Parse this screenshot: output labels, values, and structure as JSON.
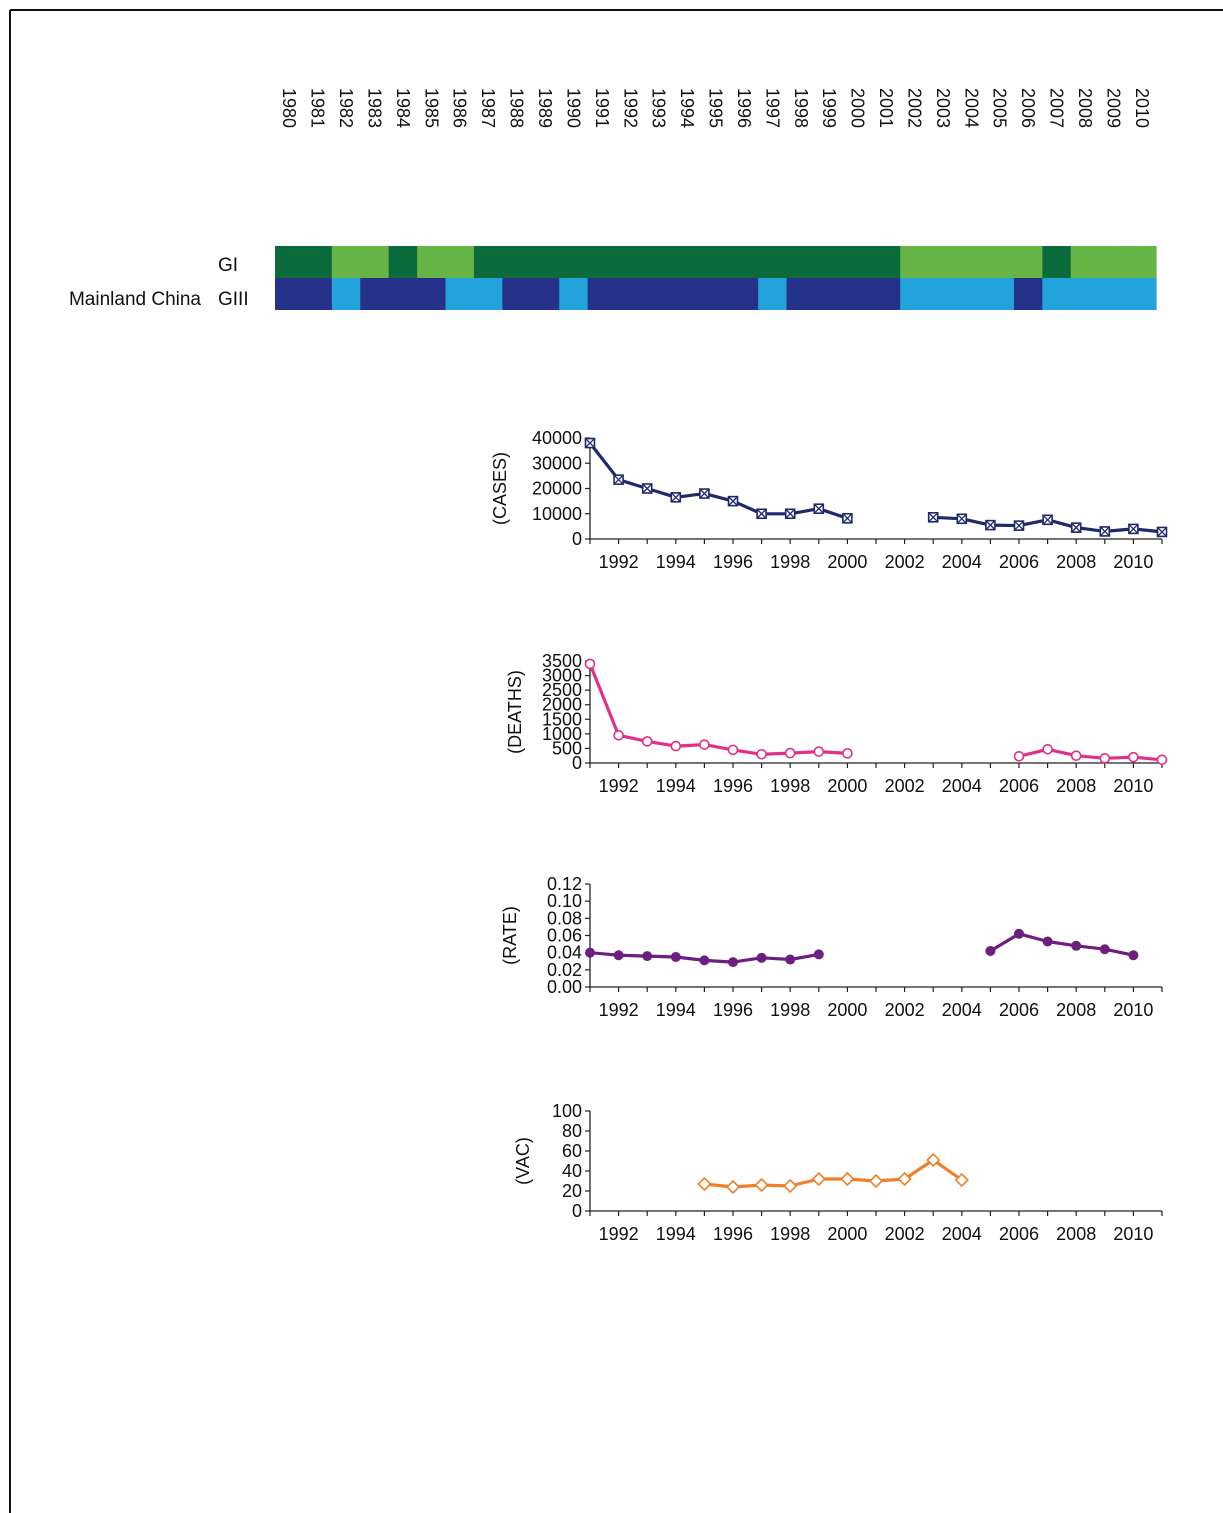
{
  "colors": {
    "gi_dark": "#0c6b3c",
    "gi_light": "#67b447",
    "giii_dark": "#26328a",
    "giii_light": "#22a3dc",
    "cases": "#1f2a6b",
    "deaths": "#e0308a",
    "rate": "#6c1f7f",
    "vac": "#f07f2c"
  },
  "chart_data": [
    {
      "type": "heatmap",
      "region_label": "Mainland China",
      "years": [
        "1980",
        "1981",
        "1982",
        "1983",
        "1984",
        "1985",
        "1986",
        "1987",
        "1988",
        "1989",
        "1990",
        "1991",
        "1992",
        "1993",
        "1994",
        "1995",
        "1996",
        "1997",
        "1998",
        "1999",
        "2000",
        "2001",
        "2002",
        "2003",
        "2004",
        "2005",
        "2006",
        "2007",
        "2008",
        "2009",
        "2010"
      ],
      "rows": [
        {
          "name": "GI",
          "levels": [
            "dark",
            "dark",
            "light",
            "light",
            "dark",
            "light",
            "light",
            "dark",
            "dark",
            "dark",
            "dark",
            "dark",
            "dark",
            "dark",
            "dark",
            "dark",
            "dark",
            "dark",
            "dark",
            "dark",
            "dark",
            "dark",
            "light",
            "light",
            "light",
            "light",
            "light",
            "dark",
            "light",
            "light",
            "light"
          ]
        },
        {
          "name": "GIII",
          "levels": [
            "dark",
            "dark",
            "light",
            "dark",
            "dark",
            "dark",
            "light",
            "light",
            "dark",
            "dark",
            "light",
            "dark",
            "dark",
            "dark",
            "dark",
            "dark",
            "dark",
            "light",
            "dark",
            "dark",
            "dark",
            "dark",
            "light",
            "light",
            "light",
            "light",
            "dark",
            "light",
            "light",
            "light",
            "light"
          ]
        }
      ]
    },
    {
      "type": "line",
      "ylabel": "(CASES)",
      "yticks": [
        "0",
        "10000",
        "20000",
        "30000",
        "40000"
      ],
      "ylim": [
        0,
        40000
      ],
      "xlim": [
        1991,
        2011
      ],
      "xticks": [
        "1992",
        "1994",
        "1996",
        "1998",
        "2000",
        "2002",
        "2004",
        "2006",
        "2008",
        "2010"
      ],
      "marker": "crossed-square",
      "segments": [
        {
          "x": [
            1991,
            1992,
            1993,
            1994,
            1995,
            1996,
            1997,
            1998,
            1999,
            2000
          ],
          "y": [
            38000,
            23500,
            20000,
            16500,
            18000,
            15000,
            10000,
            10000,
            12000,
            8200
          ]
        },
        {
          "x": [
            2003,
            2004,
            2005,
            2006,
            2007,
            2008,
            2009,
            2010,
            2011
          ],
          "y": [
            8600,
            8000,
            5500,
            5300,
            7600,
            4500,
            3000,
            4000,
            2800
          ]
        }
      ]
    },
    {
      "type": "line",
      "ylabel": "(DEATHS)",
      "yticks": [
        "0",
        "500",
        "1000",
        "1500",
        "2000",
        "2500",
        "3000",
        "3500"
      ],
      "ylim": [
        0,
        3500
      ],
      "xlim": [
        1991,
        2011
      ],
      "xticks": [
        "1992",
        "1994",
        "1996",
        "1998",
        "2000",
        "2002",
        "2004",
        "2006",
        "2008",
        "2010"
      ],
      "marker": "open-circle",
      "segments": [
        {
          "x": [
            1991,
            1992,
            1993,
            1994,
            1995,
            1996,
            1997,
            1998,
            1999,
            2000
          ],
          "y": [
            3400,
            950,
            740,
            580,
            630,
            450,
            300,
            340,
            390,
            330
          ]
        },
        {
          "x": [
            2006,
            2007,
            2008,
            2009,
            2010,
            2011
          ],
          "y": [
            230,
            470,
            250,
            160,
            200,
            110
          ]
        }
      ]
    },
    {
      "type": "line",
      "ylabel": "(RATE)",
      "yticks": [
        "0.00",
        "0.02",
        "0.04",
        "0.06",
        "0.08",
        "0.10",
        "0.12"
      ],
      "ylim": [
        0,
        0.12
      ],
      "xlim": [
        1991,
        2011
      ],
      "xticks": [
        "1992",
        "1994",
        "1996",
        "1998",
        "2000",
        "2002",
        "2004",
        "2006",
        "2008",
        "2010"
      ],
      "marker": "filled-circle",
      "segments": [
        {
          "x": [
            1991,
            1992,
            1993,
            1994,
            1995,
            1996,
            1997,
            1998,
            1999
          ],
          "y": [
            0.04,
            0.037,
            0.036,
            0.035,
            0.031,
            0.029,
            0.034,
            0.032,
            0.038
          ]
        },
        {
          "x": [
            2005,
            2006,
            2007,
            2008,
            2009,
            2010
          ],
          "y": [
            0.042,
            0.062,
            0.053,
            0.048,
            0.044,
            0.037
          ]
        }
      ]
    },
    {
      "type": "line",
      "ylabel": "(VAC)",
      "yticks": [
        "0",
        "20",
        "40",
        "60",
        "80",
        "100"
      ],
      "ylim": [
        0,
        100
      ],
      "xlim": [
        1991,
        2011
      ],
      "xticks": [
        "1992",
        "1994",
        "1996",
        "1998",
        "2000",
        "2002",
        "2004",
        "2006",
        "2008",
        "2010"
      ],
      "marker": "open-diamond",
      "segments": [
        {
          "x": [
            1995,
            1996,
            1997,
            1998,
            1999,
            2000,
            2001,
            2002,
            2003,
            2004
          ],
          "y": [
            27,
            24,
            26,
            25,
            32,
            32,
            30,
            32,
            51,
            31
          ]
        }
      ]
    }
  ]
}
